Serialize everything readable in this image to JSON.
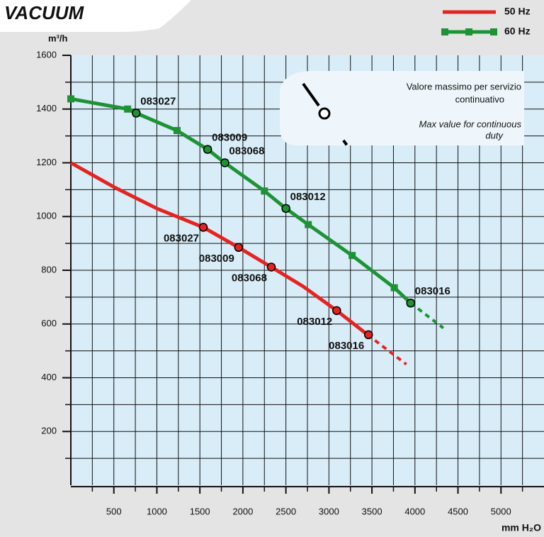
{
  "chart_data": {
    "type": "line",
    "title": "VACUUM",
    "y_label": "m³/h",
    "x_label": "mm H₂O",
    "xlim": [
      0,
      5500
    ],
    "ylim": [
      0,
      1600
    ],
    "xticks": [
      500,
      1000,
      1500,
      2000,
      2500,
      3000,
      3500,
      4000,
      4500,
      5000
    ],
    "yticks": [
      200,
      400,
      600,
      800,
      1000,
      1200,
      1400,
      1600
    ],
    "xgrid": [
      250,
      500,
      750,
      1000,
      1250,
      1500,
      1750,
      2000,
      2250,
      2500,
      2750,
      3000,
      3250,
      3500,
      3750,
      4000,
      4250,
      4500,
      4750,
      5000,
      5250
    ],
    "ygrid": [
      100,
      200,
      300,
      400,
      500,
      600,
      700,
      800,
      900,
      1000,
      1100,
      1200,
      1300,
      1400,
      1500
    ],
    "grid": true,
    "legend": "top-right",
    "series": [
      {
        "name": "50 Hz",
        "color": "#e52421",
        "marker": "none",
        "x": [
          0,
          500,
          1000,
          1540,
          1950,
          2330,
          2700,
          3090,
          3450
        ],
        "values": [
          1200,
          1110,
          1030,
          960,
          885,
          812,
          740,
          650,
          560
        ],
        "ext_x": [
          3450,
          3900
        ],
        "ext_values": [
          560,
          450
        ],
        "points": [
          {
            "label": "083027",
            "x": 1540,
            "y": 960
          },
          {
            "label": "083009",
            "x": 1950,
            "y": 885
          },
          {
            "label": "083068",
            "x": 2330,
            "y": 812
          },
          {
            "label": "083012",
            "x": 3090,
            "y": 650
          },
          {
            "label": "083016",
            "x": 3460,
            "y": 560
          }
        ]
      },
      {
        "name": "60 Hz",
        "color": "#1e9336",
        "marker": "square",
        "x": [
          0,
          660,
          760,
          1235,
          1590,
          1790,
          2250,
          2500,
          2760,
          3270,
          3760,
          3950
        ],
        "values": [
          1438,
          1400,
          1385,
          1320,
          1250,
          1200,
          1095,
          1030,
          970,
          855,
          735,
          678
        ],
        "ext_x": [
          3950,
          4330
        ],
        "ext_values": [
          678,
          585
        ],
        "points": [
          {
            "label": "083027",
            "x": 760,
            "y": 1385
          },
          {
            "label": "083009",
            "x": 1590,
            "y": 1250
          },
          {
            "label": "083068",
            "x": 1790,
            "y": 1200
          },
          {
            "label": "083012",
            "x": 2500,
            "y": 1030
          },
          {
            "label": "083016",
            "x": 3950,
            "y": 678
          }
        ]
      }
    ],
    "annotation_it": [
      "Valore massimo per  servizio",
      "continuativo"
    ],
    "annotation_en": [
      "Max value for continuous",
      "duty"
    ]
  }
}
